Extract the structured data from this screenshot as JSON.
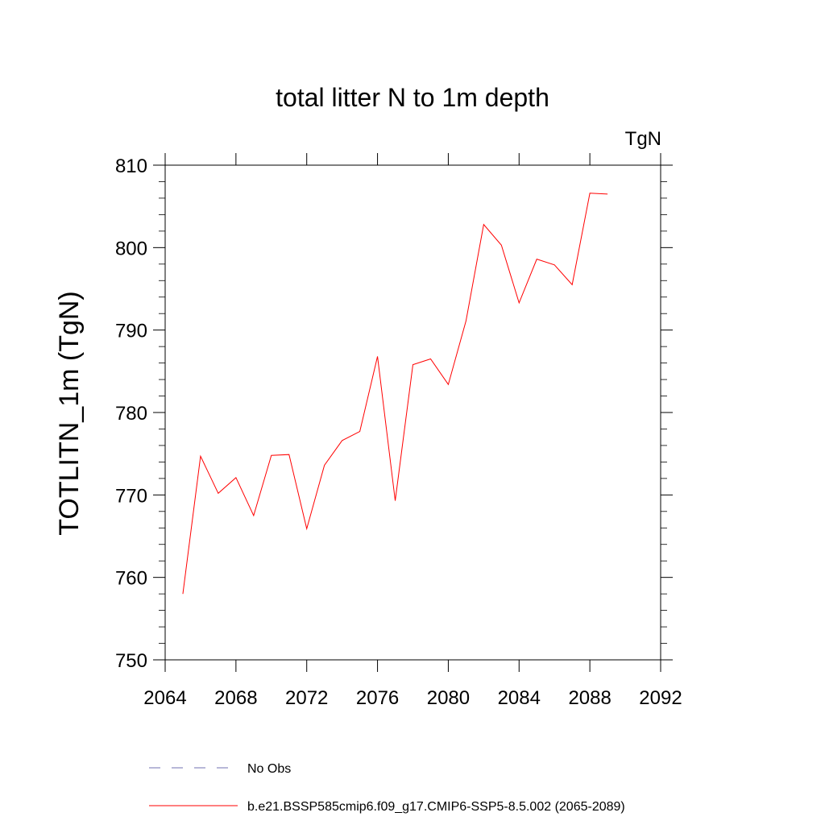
{
  "chart_data": {
    "type": "line",
    "title": "total litter N to 1m depth",
    "units_label": "TgN",
    "ylabel": "TOTLITN_1m  (TgN)",
    "xlabel": "",
    "xlim": [
      2064,
      2092
    ],
    "ylim": [
      750,
      810
    ],
    "x_ticks": [
      "2064",
      "2068",
      "2072",
      "2076",
      "2080",
      "2084",
      "2088",
      "2092"
    ],
    "y_ticks": [
      "750",
      "760",
      "770",
      "780",
      "790",
      "800",
      "810"
    ],
    "grid": false,
    "legend_position": "bottom",
    "series": [
      {
        "name": "No Obs",
        "color": "#7070b0",
        "dash": "dashed",
        "x": [],
        "y": []
      },
      {
        "name": "b.e21.BSSP585cmip6.f09_g17.CMIP6-SSP5-8.5.002 (2065-2089)",
        "color": "#ff0000",
        "dash": "solid",
        "x": [
          2065,
          2066,
          2067,
          2068,
          2069,
          2070,
          2071,
          2072,
          2073,
          2074,
          2075,
          2076,
          2077,
          2078,
          2079,
          2080,
          2081,
          2082,
          2083,
          2084,
          2085,
          2086,
          2087,
          2088,
          2089
        ],
        "y": [
          758.0,
          774.7,
          770.2,
          772.1,
          767.5,
          774.8,
          774.9,
          765.9,
          773.6,
          776.6,
          777.7,
          786.8,
          769.3,
          785.8,
          786.5,
          783.4,
          791.1,
          802.8,
          800.3,
          793.3,
          798.6,
          797.9,
          795.5,
          806.6,
          806.5
        ]
      }
    ]
  }
}
